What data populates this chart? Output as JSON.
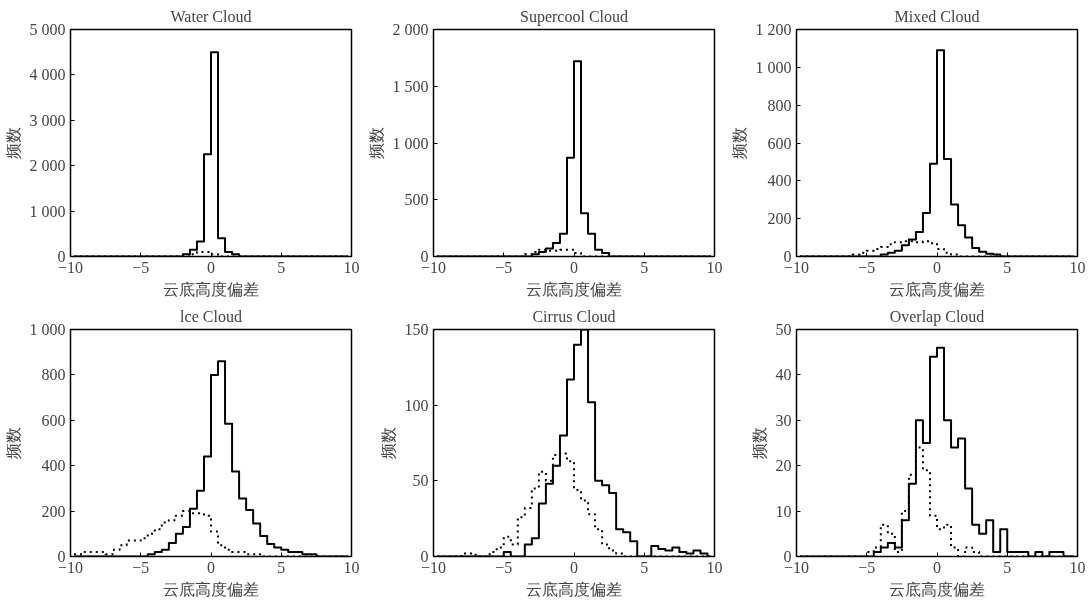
{
  "chart_data": [
    {
      "type": "step",
      "title": "Water Cloud",
      "xlabel": "云底高度偏差",
      "ylabel": "频数",
      "x": [
        -9.75,
        -9.25,
        -8.75,
        -8.25,
        -7.75,
        -7.25,
        -6.75,
        -6.25,
        -5.75,
        -5.25,
        -4.75,
        -4.25,
        -3.75,
        -3.25,
        -2.75,
        -2.25,
        -1.75,
        -1.25,
        -0.75,
        -0.25,
        0.25,
        0.75,
        1.25,
        1.75,
        2.25,
        2.75,
        3.25,
        3.75,
        4.25,
        4.75,
        5.25,
        5.75,
        6.25,
        6.75,
        7.25,
        7.75,
        8.25,
        8.75,
        9.25,
        9.75
      ],
      "xlim": [
        -10,
        10
      ],
      "ylim": [
        0,
        5000
      ],
      "xticks": [
        -10,
        -5,
        0,
        5,
        10
      ],
      "yticks": [
        0,
        {
          "value": 1000,
          "label": "1 000"
        },
        {
          "value": 2000,
          "label": "2 000"
        },
        {
          "value": 3000,
          "label": "3 000"
        },
        {
          "value": 4000,
          "label": "4 000"
        },
        {
          "value": 5000,
          "label": "5 000"
        }
      ],
      "series": [
        {
          "color": "#000000",
          "line_style": "solid",
          "values": [
            0,
            0,
            0,
            0,
            0,
            0,
            0,
            0,
            0,
            0,
            0,
            0,
            0,
            0,
            0,
            0,
            50,
            150,
            330,
            2250,
            4500,
            400,
            100,
            50,
            0,
            0,
            0,
            0,
            0,
            0,
            0,
            0,
            0,
            0,
            0,
            0,
            0,
            0,
            0,
            0
          ]
        },
        {
          "color": "#000000",
          "line_style": "dotted",
          "values": [
            0,
            0,
            0,
            0,
            0,
            0,
            0,
            0,
            0,
            0,
            0,
            0,
            0,
            0,
            0,
            0,
            0,
            50,
            100,
            100,
            50,
            0,
            0,
            0,
            0,
            0,
            0,
            0,
            0,
            0,
            0,
            0,
            0,
            0,
            0,
            0,
            0,
            0,
            0,
            0
          ]
        }
      ]
    },
    {
      "type": "step",
      "title": "Supercool Cloud",
      "xlabel": "云底高度偏差",
      "ylabel": "频数",
      "x": [
        -9.75,
        -9.25,
        -8.75,
        -8.25,
        -7.75,
        -7.25,
        -6.75,
        -6.25,
        -5.75,
        -5.25,
        -4.75,
        -4.25,
        -3.75,
        -3.25,
        -2.75,
        -2.25,
        -1.75,
        -1.25,
        -0.75,
        -0.25,
        0.25,
        0.75,
        1.25,
        1.75,
        2.25,
        2.75,
        3.25,
        3.75,
        4.25,
        4.75,
        5.25,
        5.75,
        6.25,
        6.75,
        7.25,
        7.75,
        8.25,
        8.75,
        9.25,
        9.75
      ],
      "xlim": [
        -10,
        10
      ],
      "ylim": [
        0,
        2000
      ],
      "xticks": [
        -10,
        -5,
        0,
        5,
        10
      ],
      "yticks": [
        0,
        500,
        {
          "value": 1000,
          "label": "1 000"
        },
        {
          "value": 1500,
          "label": "1 500"
        },
        {
          "value": 2000,
          "label": "2 000"
        }
      ],
      "series": [
        {
          "color": "#000000",
          "line_style": "solid",
          "values": [
            0,
            0,
            0,
            0,
            0,
            0,
            0,
            0,
            0,
            0,
            0,
            0,
            0,
            0,
            20,
            40,
            70,
            120,
            200,
            870,
            1720,
            380,
            200,
            60,
            30,
            0,
            0,
            0,
            0,
            0,
            0,
            0,
            0,
            0,
            0,
            0,
            0,
            0,
            0,
            0
          ]
        },
        {
          "color": "#000000",
          "line_style": "dotted",
          "values": [
            0,
            0,
            0,
            0,
            0,
            0,
            0,
            0,
            0,
            0,
            0,
            0,
            0,
            20,
            40,
            60,
            50,
            50,
            60,
            60,
            30,
            0,
            0,
            0,
            0,
            0,
            0,
            0,
            0,
            0,
            0,
            0,
            0,
            0,
            0,
            0,
            0,
            0,
            0,
            0
          ]
        }
      ]
    },
    {
      "type": "step",
      "title": "Mixed Cloud",
      "xlabel": "云底高度偏差",
      "ylabel": "频数",
      "x": [
        -9.75,
        -9.25,
        -8.75,
        -8.25,
        -7.75,
        -7.25,
        -6.75,
        -6.25,
        -5.75,
        -5.25,
        -4.75,
        -4.25,
        -3.75,
        -3.25,
        -2.75,
        -2.25,
        -1.75,
        -1.25,
        -0.75,
        -0.25,
        0.25,
        0.75,
        1.25,
        1.75,
        2.25,
        2.75,
        3.25,
        3.75,
        4.25,
        4.75,
        5.25,
        5.75,
        6.25,
        6.75,
        7.25,
        7.75,
        8.25,
        8.75,
        9.25,
        9.75
      ],
      "xlim": [
        -10,
        10
      ],
      "ylim": [
        0,
        1200
      ],
      "xticks": [
        -10,
        -5,
        0,
        5,
        10
      ],
      "yticks": [
        0,
        200,
        400,
        600,
        800,
        {
          "value": 1000,
          "label": "1 000"
        },
        {
          "value": 1200,
          "label": "1 200"
        }
      ],
      "series": [
        {
          "color": "#000000",
          "line_style": "solid",
          "values": [
            0,
            0,
            0,
            0,
            0,
            0,
            0,
            0,
            0,
            0,
            0,
            0,
            10,
            20,
            30,
            60,
            90,
            130,
            230,
            490,
            1090,
            515,
            275,
            165,
            100,
            45,
            25,
            15,
            10,
            0,
            0,
            0,
            0,
            0,
            0,
            0,
            0,
            0,
            0,
            0
          ]
        },
        {
          "color": "#000000",
          "line_style": "dotted",
          "values": [
            0,
            0,
            0,
            0,
            0,
            0,
            0,
            0,
            10,
            20,
            30,
            40,
            50,
            65,
            75,
            80,
            80,
            75,
            80,
            70,
            40,
            20,
            10,
            0,
            0,
            0,
            0,
            0,
            0,
            0,
            0,
            0,
            0,
            0,
            0,
            0,
            0,
            0,
            0,
            0
          ]
        }
      ]
    },
    {
      "type": "step",
      "title": "lce Cloud",
      "xlabel": "云底高度偏差",
      "ylabel": "频数",
      "x": [
        -9.75,
        -9.25,
        -8.75,
        -8.25,
        -7.75,
        -7.25,
        -6.75,
        -6.25,
        -5.75,
        -5.25,
        -4.75,
        -4.25,
        -3.75,
        -3.25,
        -2.75,
        -2.25,
        -1.75,
        -1.25,
        -0.75,
        -0.25,
        0.25,
        0.75,
        1.25,
        1.75,
        2.25,
        2.75,
        3.25,
        3.75,
        4.25,
        4.75,
        5.25,
        5.75,
        6.25,
        6.75,
        7.25,
        7.75,
        8.25,
        8.75,
        9.25,
        9.75
      ],
      "xlim": [
        -10,
        10
      ],
      "ylim": [
        0,
        1000
      ],
      "xticks": [
        -10,
        -5,
        0,
        5,
        10
      ],
      "yticks": [
        0,
        200,
        400,
        600,
        800,
        {
          "value": 1000,
          "label": "1 000"
        }
      ],
      "series": [
        {
          "color": "#000000",
          "line_style": "solid",
          "values": [
            0,
            0,
            0,
            0,
            0,
            0,
            0,
            0,
            0,
            0,
            0,
            10,
            20,
            30,
            60,
            100,
            130,
            210,
            290,
            440,
            800,
            860,
            585,
            375,
            255,
            205,
            145,
            90,
            55,
            40,
            30,
            20,
            20,
            10,
            10,
            0,
            0,
            0,
            0,
            0
          ]
        },
        {
          "color": "#000000",
          "line_style": "dotted",
          "values": [
            10,
            10,
            20,
            20,
            20,
            10,
            30,
            50,
            70,
            70,
            80,
            100,
            120,
            150,
            160,
            180,
            200,
            190,
            190,
            180,
            110,
            50,
            30,
            20,
            20,
            10,
            10,
            0,
            0,
            0,
            0,
            0,
            0,
            0,
            0,
            0,
            0,
            0,
            0,
            0
          ]
        }
      ]
    },
    {
      "type": "step",
      "title": "Cirrus Cloud",
      "xlabel": "云底高度偏差",
      "ylabel": "频数",
      "x": [
        -9.75,
        -9.25,
        -8.75,
        -8.25,
        -7.75,
        -7.25,
        -6.75,
        -6.25,
        -5.75,
        -5.25,
        -4.75,
        -4.25,
        -3.75,
        -3.25,
        -2.75,
        -2.25,
        -1.75,
        -1.25,
        -0.75,
        -0.25,
        0.25,
        0.75,
        1.25,
        1.75,
        2.25,
        2.75,
        3.25,
        3.75,
        4.25,
        4.75,
        5.25,
        5.75,
        6.25,
        6.75,
        7.25,
        7.75,
        8.25,
        8.75,
        9.25,
        9.75
      ],
      "xlim": [
        -10,
        10
      ],
      "ylim": [
        0,
        150
      ],
      "xticks": [
        -10,
        -5,
        0,
        5,
        10
      ],
      "yticks": [
        0,
        50,
        100,
        150
      ],
      "series": [
        {
          "color": "#000000",
          "line_style": "solid",
          "values": [
            0,
            0,
            0,
            0,
            0,
            0,
            0,
            0,
            0,
            0,
            3,
            0,
            0,
            8,
            12,
            35,
            48,
            60,
            80,
            117,
            140,
            150,
            102,
            50,
            47,
            42,
            18,
            16,
            10,
            0,
            0,
            7,
            5,
            4,
            6,
            3,
            2,
            4,
            2,
            0
          ]
        },
        {
          "color": "#000000",
          "line_style": "dotted",
          "values": [
            0,
            0,
            0,
            0,
            2,
            2,
            0,
            0,
            3,
            6,
            13,
            8,
            26,
            32,
            45,
            56,
            50,
            67,
            68,
            63,
            44,
            37,
            28,
            18,
            8,
            4,
            2,
            0,
            0,
            0,
            0,
            0,
            0,
            0,
            0,
            0,
            0,
            0,
            0,
            0
          ]
        }
      ]
    },
    {
      "type": "step",
      "title": "Overlap Cloud",
      "xlabel": "云底高度偏差",
      "ylabel": "频数",
      "x": [
        -9.75,
        -9.25,
        -8.75,
        -8.25,
        -7.75,
        -7.25,
        -6.75,
        -6.25,
        -5.75,
        -5.25,
        -4.75,
        -4.25,
        -3.75,
        -3.25,
        -2.75,
        -2.25,
        -1.75,
        -1.25,
        -0.75,
        -0.25,
        0.25,
        0.75,
        1.25,
        1.75,
        2.25,
        2.75,
        3.25,
        3.75,
        4.25,
        4.75,
        5.25,
        5.75,
        6.25,
        6.75,
        7.25,
        7.75,
        8.25,
        8.75,
        9.25,
        9.75
      ],
      "xlim": [
        -10,
        10
      ],
      "ylim": [
        0,
        50
      ],
      "xticks": [
        -10,
        -5,
        0,
        5,
        10
      ],
      "yticks": [
        0,
        10,
        20,
        30,
        40,
        50
      ],
      "series": [
        {
          "color": "#000000",
          "line_style": "solid",
          "values": [
            0,
            0,
            0,
            0,
            0,
            0,
            0,
            0,
            0,
            0,
            0,
            1,
            2,
            3,
            2,
            8,
            16,
            30,
            25,
            44,
            46,
            30,
            24,
            26,
            15,
            7,
            5,
            8,
            1,
            6,
            1,
            1,
            1,
            0,
            1,
            0,
            1,
            1,
            0,
            0
          ]
        },
        {
          "color": "#000000",
          "line_style": "dotted",
          "values": [
            0,
            0,
            0,
            0,
            0,
            0,
            0,
            0,
            0,
            0,
            1,
            2,
            7,
            5,
            1,
            10,
            18,
            24,
            19,
            9,
            6,
            7,
            2,
            0,
            2,
            1,
            0,
            0,
            0,
            0,
            0,
            0,
            0,
            0,
            0,
            0,
            0,
            0,
            0,
            0
          ]
        }
      ]
    }
  ]
}
